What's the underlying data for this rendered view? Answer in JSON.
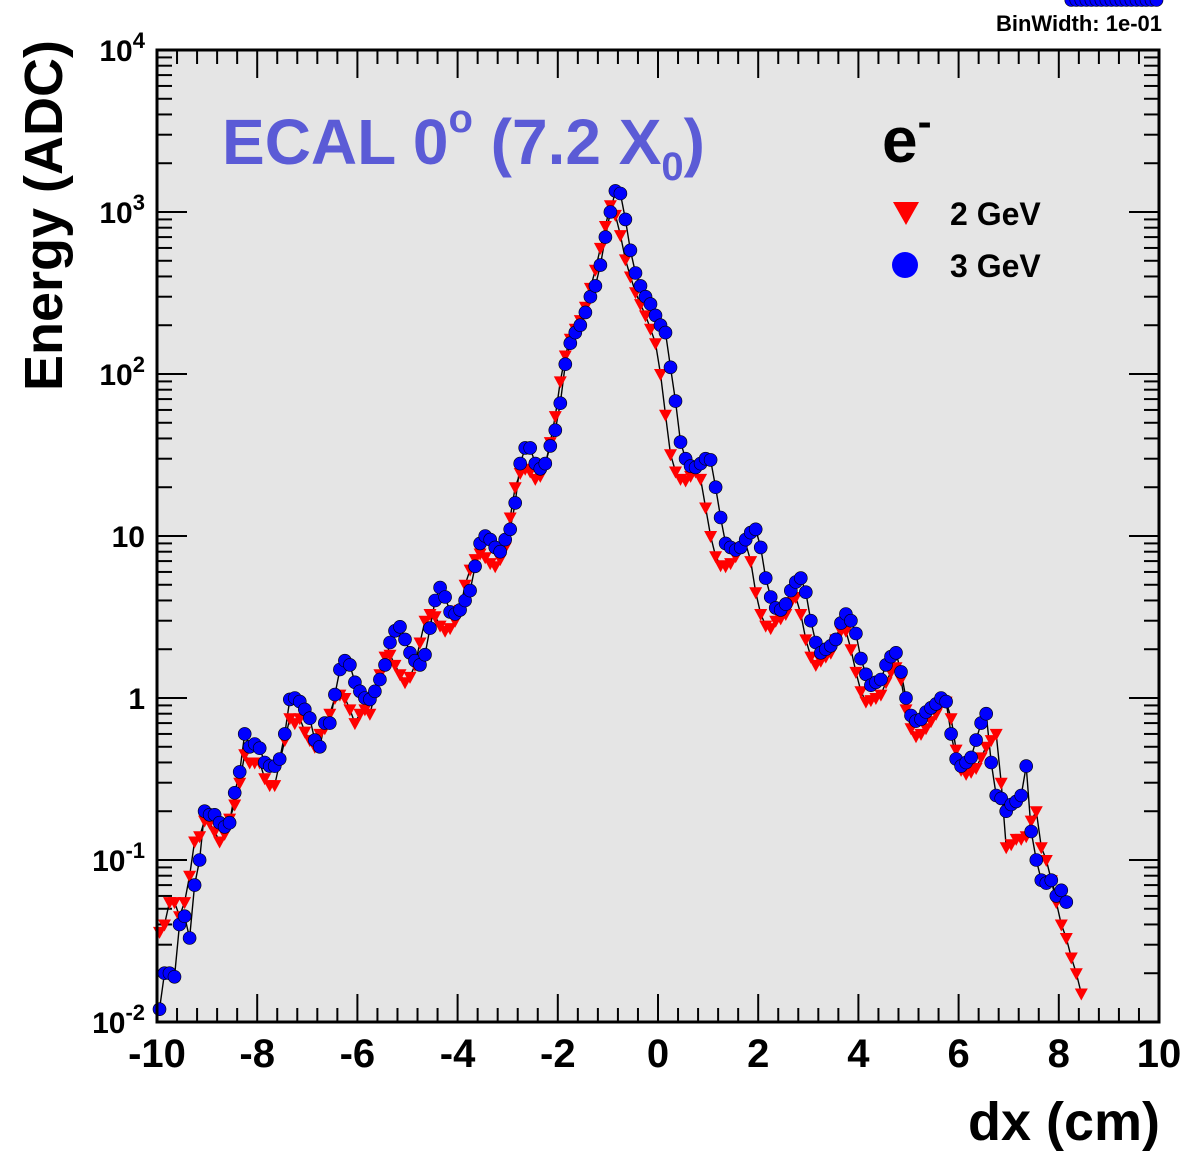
{
  "chart_data": {
    "type": "scatter",
    "title": "ECAL 0° (7.2 X₀)",
    "title_parts": {
      "main": "ECAL 0",
      "sup": "o",
      "mid": " (7.2 X",
      "sub": "0",
      "end": ")"
    },
    "particle": {
      "base": "e",
      "sup": "-"
    },
    "bin_width_label": "BinWidth: 1e-01",
    "xlabel": "dx (cm)",
    "ylabel": "Energy (ADC)",
    "xlim": [
      -10,
      10
    ],
    "ylim": [
      0.01,
      10000
    ],
    "y_scale": "log",
    "grid": false,
    "legend_position": "top-right",
    "x_ticks": [
      {
        "value": -10,
        "label": "-10"
      },
      {
        "value": -8,
        "label": "-8"
      },
      {
        "value": -6,
        "label": "-6"
      },
      {
        "value": -4,
        "label": "-4"
      },
      {
        "value": -2,
        "label": "-2"
      },
      {
        "value": 0,
        "label": "0"
      },
      {
        "value": 2,
        "label": "2"
      },
      {
        "value": 4,
        "label": "4"
      },
      {
        "value": 6,
        "label": "6"
      },
      {
        "value": 8,
        "label": "8"
      },
      {
        "value": 10,
        "label": "10"
      }
    ],
    "y_ticks": [
      {
        "value": 10000,
        "base": "10",
        "sup": "4"
      },
      {
        "value": 1000,
        "base": "10",
        "sup": "3"
      },
      {
        "value": 100,
        "base": "10",
        "sup": "2"
      },
      {
        "value": 10,
        "base": "10",
        "sup": ""
      },
      {
        "value": 1,
        "base": "1",
        "sup": ""
      },
      {
        "value": 0.1,
        "base": "10",
        "sup": "-1"
      },
      {
        "value": 0.01,
        "base": "10",
        "sup": "-2"
      }
    ],
    "x": [
      -9.95,
      -9.85,
      -9.75,
      -9.65,
      -9.55,
      -9.45,
      -9.35,
      -9.25,
      -9.15,
      -9.05,
      -8.95,
      -8.85,
      -8.75,
      -8.65,
      -8.55,
      -8.45,
      -8.35,
      -8.25,
      -8.15,
      -8.05,
      -7.95,
      -7.85,
      -7.75,
      -7.65,
      -7.55,
      -7.45,
      -7.35,
      -7.25,
      -7.15,
      -7.05,
      -6.95,
      -6.85,
      -6.75,
      -6.65,
      -6.55,
      -6.45,
      -6.35,
      -6.25,
      -6.15,
      -6.05,
      -5.95,
      -5.85,
      -5.75,
      -5.65,
      -5.55,
      -5.45,
      -5.35,
      -5.25,
      -5.15,
      -5.05,
      -4.95,
      -4.85,
      -4.75,
      -4.65,
      -4.55,
      -4.45,
      -4.35,
      -4.25,
      -4.15,
      -4.05,
      -3.95,
      -3.85,
      -3.75,
      -3.65,
      -3.55,
      -3.45,
      -3.35,
      -3.25,
      -3.15,
      -3.05,
      -2.95,
      -2.85,
      -2.75,
      -2.65,
      -2.55,
      -2.45,
      -2.35,
      -2.25,
      -2.15,
      -2.05,
      -1.95,
      -1.85,
      -1.75,
      -1.65,
      -1.55,
      -1.45,
      -1.35,
      -1.25,
      -1.15,
      -1.05,
      -0.95,
      -0.85,
      -0.75,
      -0.65,
      -0.55,
      -0.45,
      -0.35,
      -0.25,
      -0.15,
      -0.05,
      0.05,
      0.15,
      0.25,
      0.35,
      0.45,
      0.55,
      0.65,
      0.75,
      0.85,
      0.95,
      1.05,
      1.15,
      1.25,
      1.35,
      1.45,
      1.55,
      1.65,
      1.75,
      1.85,
      1.95,
      2.05,
      2.15,
      2.25,
      2.35,
      2.45,
      2.55,
      2.65,
      2.75,
      2.85,
      2.95,
      3.05,
      3.15,
      3.25,
      3.35,
      3.45,
      3.55,
      3.65,
      3.75,
      3.85,
      3.95,
      4.05,
      4.15,
      4.25,
      4.35,
      4.45,
      4.55,
      4.65,
      4.75,
      4.85,
      4.95,
      5.05,
      5.15,
      5.25,
      5.35,
      5.45,
      5.55,
      5.65,
      5.75,
      5.85,
      5.95,
      6.05,
      6.15,
      6.25,
      6.35,
      6.45,
      6.55,
      6.65,
      6.75,
      6.85,
      6.95,
      7.05,
      7.15,
      7.25,
      7.35,
      7.45,
      7.55,
      7.65,
      7.75,
      7.85,
      7.95,
      8.05,
      8.15,
      8.25,
      8.35,
      8.45,
      8.55,
      8.65,
      8.75,
      8.85,
      8.95,
      9.05,
      9.15,
      9.25,
      9.35,
      9.45,
      9.55,
      9.65,
      9.75,
      9.85,
      9.95
    ],
    "series": [
      {
        "name": "2 GeV",
        "marker": "triangle-down",
        "color": "#ff0000",
        "values": [
          0.036,
          0.04,
          0.055,
          0.055,
          0.045,
          0.055,
          0.08,
          0.13,
          0.14,
          0.175,
          0.17,
          0.15,
          0.13,
          0.145,
          0.18,
          0.22,
          0.3,
          0.45,
          0.4,
          0.4,
          0.4,
          0.32,
          0.29,
          0.29,
          0.4,
          0.55,
          0.75,
          0.7,
          0.75,
          0.62,
          0.55,
          0.5,
          0.6,
          0.65,
          0.8,
          1.0,
          1.05,
          1.0,
          0.85,
          0.7,
          0.8,
          0.85,
          0.8,
          1.05,
          1.4,
          1.8,
          1.85,
          1.6,
          1.4,
          1.25,
          1.35,
          1.6,
          2.2,
          3.0,
          3.3,
          3.2,
          2.8,
          2.6,
          2.7,
          3.0,
          3.5,
          5.0,
          6.2,
          7.2,
          7.8,
          7.4,
          6.8,
          6.5,
          7.2,
          8.5,
          13.0,
          20.0,
          24.5,
          26.0,
          25.0,
          22.5,
          23.5,
          27.5,
          38.0,
          55.0,
          90.0,
          130.0,
          165.0,
          190.0,
          215.0,
          260.0,
          340.0,
          440.0,
          600.0,
          820.0,
          1100.0,
          960.0,
          720.0,
          510.0,
          400.0,
          320.0,
          270.0,
          230.0,
          190.0,
          155.0,
          100.0,
          56.0,
          32.0,
          25.0,
          22.5,
          22.0,
          23.5,
          25.0,
          22.5,
          15.0,
          10.0,
          7.5,
          6.6,
          6.5,
          6.8,
          7.5,
          8.5,
          9.0,
          7.0,
          4.5,
          3.3,
          2.8,
          2.7,
          3.0,
          3.1,
          3.3,
          3.9,
          4.2,
          3.3,
          2.3,
          1.8,
          1.6,
          1.7,
          1.8,
          1.9,
          2.3,
          2.6,
          2.6,
          2.0,
          1.45,
          1.1,
          0.95,
          0.97,
          1.0,
          1.05,
          1.25,
          1.45,
          1.55,
          1.3,
          0.85,
          0.65,
          0.58,
          0.6,
          0.65,
          0.72,
          0.8,
          0.92,
          0.95,
          0.75,
          0.48,
          0.36,
          0.34,
          0.35,
          0.37,
          0.43,
          0.5,
          0.55,
          0.6,
          0.3,
          0.12,
          0.125,
          0.135,
          0.135,
          0.14,
          0.175,
          0.2,
          0.12,
          0.1,
          0.075,
          0.055,
          0.04,
          0.033,
          0.025,
          0.02,
          0.015
        ]
      },
      {
        "name": "3 GeV",
        "marker": "circle",
        "color": "#0000ff",
        "values": [
          0.012,
          0.02,
          0.02,
          0.019,
          0.04,
          0.045,
          0.033,
          0.07,
          0.1,
          0.2,
          0.19,
          0.19,
          0.17,
          0.16,
          0.17,
          0.26,
          0.35,
          0.6,
          0.5,
          0.52,
          0.49,
          0.4,
          0.38,
          0.38,
          0.42,
          0.6,
          0.98,
          1.0,
          0.95,
          0.85,
          0.75,
          0.55,
          0.5,
          0.7,
          0.7,
          1.05,
          1.5,
          1.7,
          1.6,
          1.25,
          1.1,
          1.0,
          0.98,
          1.1,
          1.3,
          1.6,
          2.2,
          2.6,
          2.75,
          2.3,
          1.9,
          1.7,
          1.6,
          1.85,
          2.7,
          4.0,
          4.8,
          4.2,
          3.4,
          3.3,
          3.5,
          4.0,
          4.6,
          6.5,
          9.0,
          10.0,
          9.5,
          8.5,
          8.0,
          9.5,
          11.0,
          16.0,
          28.0,
          35.0,
          35.0,
          28.0,
          26.0,
          28.0,
          36.0,
          45.0,
          66.0,
          115.0,
          155.0,
          180.0,
          200.0,
          240.0,
          300.0,
          350.0,
          470.0,
          700.0,
          1000.0,
          1350.0,
          1300.0,
          900.0,
          580.0,
          420.0,
          350.0,
          300.0,
          270.0,
          230.0,
          200.0,
          180.0,
          110.0,
          68.0,
          38.0,
          30.0,
          27.0,
          26.5,
          28.0,
          30.0,
          29.5,
          20.0,
          13.0,
          9.0,
          8.5,
          8.2,
          8.5,
          9.5,
          10.5,
          11.0,
          8.5,
          5.5,
          4.2,
          3.6,
          3.5,
          3.8,
          4.6,
          5.2,
          5.5,
          4.5,
          3.0,
          2.2,
          1.9,
          2.0,
          2.1,
          2.3,
          2.9,
          3.3,
          3.0,
          2.5,
          1.75,
          1.4,
          1.2,
          1.25,
          1.3,
          1.6,
          1.8,
          1.9,
          1.45,
          1.0,
          0.78,
          0.72,
          0.74,
          0.82,
          0.87,
          0.92,
          1.0,
          0.95,
          0.6,
          0.42,
          0.38,
          0.4,
          0.43,
          0.55,
          0.7,
          0.8,
          0.4,
          0.25,
          0.24,
          0.2,
          0.22,
          0.23,
          0.25,
          0.38,
          0.15,
          0.1,
          0.075,
          0.072,
          0.075,
          0.06,
          0.065,
          0.055
        ]
      }
    ]
  }
}
